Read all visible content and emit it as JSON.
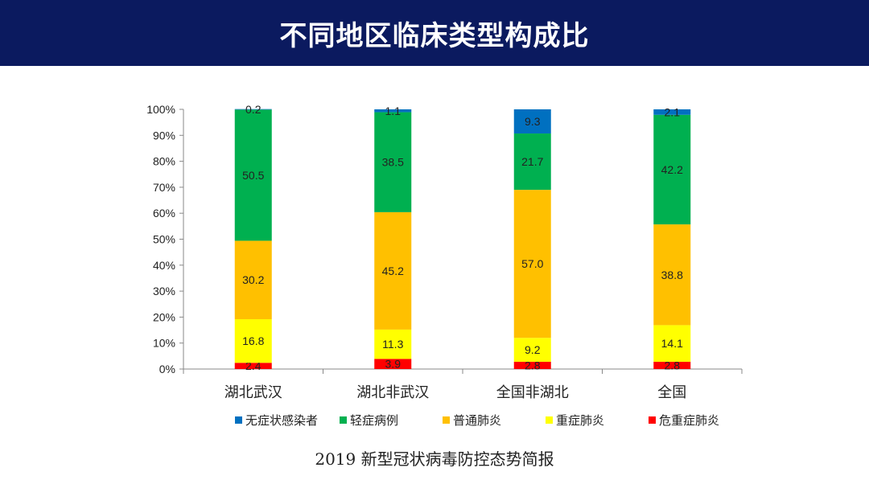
{
  "header": {
    "title": "不同地区临床类型构成比"
  },
  "caption": "2019 新型冠状病毒防控态势简报",
  "chart_data": {
    "type": "bar",
    "stacked": true,
    "ylim": [
      0,
      100
    ],
    "yticks": [
      "0%",
      "10%",
      "20%",
      "30%",
      "40%",
      "50%",
      "60%",
      "70%",
      "80%",
      "90%",
      "100%"
    ],
    "legend_position": "bottom",
    "categories": [
      "湖北武汉",
      "湖北非武汉",
      "全国非湖北",
      "全国"
    ],
    "series": [
      {
        "name": "危重症肺炎",
        "color": "#ff0000",
        "values": [
          2.4,
          3.9,
          2.8,
          2.8
        ]
      },
      {
        "name": "重症肺炎",
        "color": "#ffff00",
        "values": [
          16.8,
          11.3,
          9.2,
          14.1
        ]
      },
      {
        "name": "普通肺炎",
        "color": "#ffc000",
        "values": [
          30.2,
          45.2,
          57.0,
          38.8
        ]
      },
      {
        "name": "轻症病例",
        "color": "#00b050",
        "values": [
          50.5,
          38.5,
          21.7,
          42.2
        ]
      },
      {
        "name": "无症状感染者",
        "color": "#0070c0",
        "values": [
          0.2,
          1.1,
          9.3,
          2.1
        ]
      }
    ],
    "legend_order": [
      "无症状感染者",
      "轻症病例",
      "普通肺炎",
      "重症肺炎",
      "危重症肺炎"
    ]
  }
}
